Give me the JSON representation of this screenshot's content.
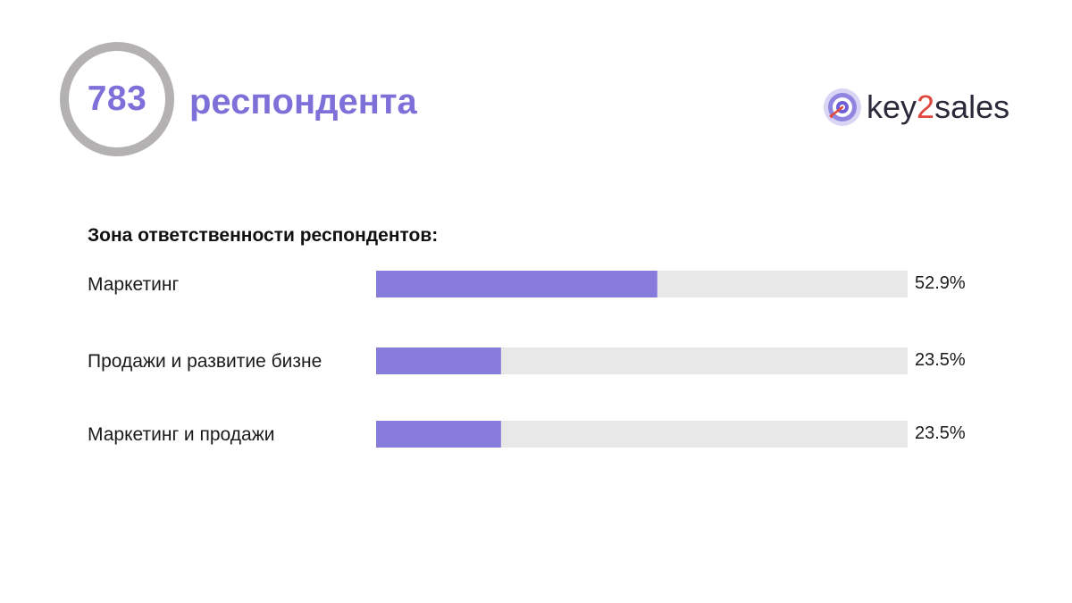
{
  "header": {
    "count": "783",
    "count_label": "респондента"
  },
  "logo": {
    "text_prefix": "key",
    "text_accent": "2",
    "text_suffix": "sales",
    "accent_color": "#e0483e",
    "icon": "target-icon"
  },
  "colors": {
    "bar_fill": "#877bdc",
    "bar_track": "#e8e8e8",
    "ring": "#b3b1b1",
    "headline": "#7d70d8"
  },
  "chart_data": {
    "type": "bar",
    "orientation": "horizontal",
    "title": "Зона ответственности респондентов:",
    "categories": [
      "Маркетинг",
      "Продажи и развитие бизне",
      "Маркетинг и продажи"
    ],
    "values": [
      52.9,
      23.5,
      23.5
    ],
    "value_labels": [
      "52.9%",
      "23.5%",
      "23.5%"
    ],
    "xlim": [
      0,
      100
    ],
    "grid": false,
    "legend": "none"
  }
}
